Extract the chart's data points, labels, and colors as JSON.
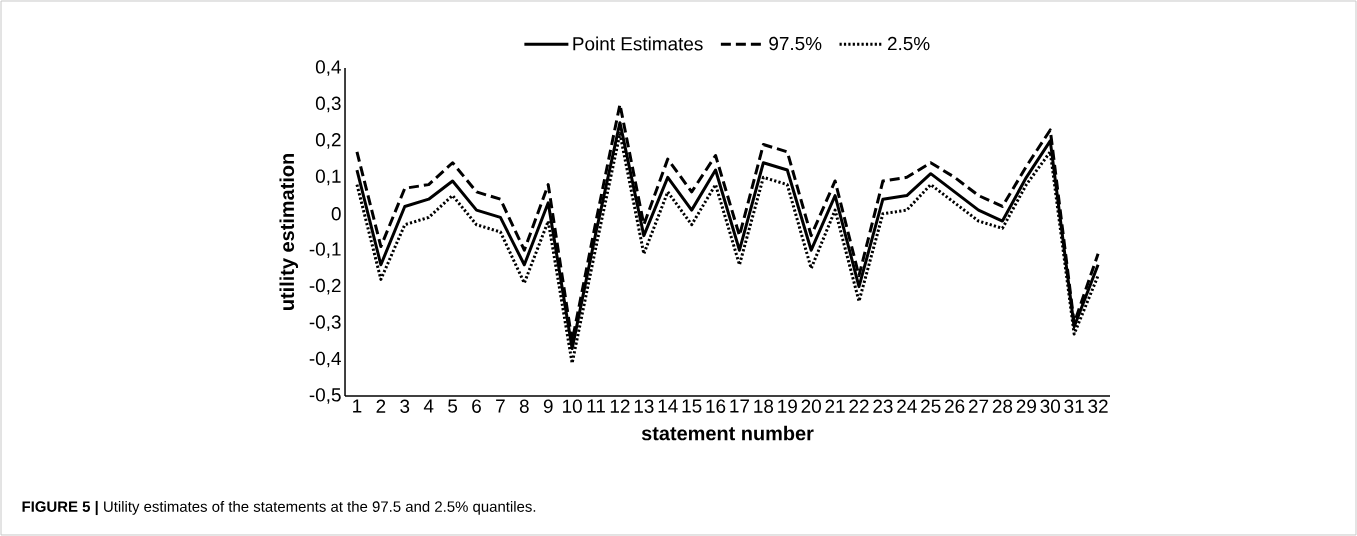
{
  "chart_data": {
    "type": "line",
    "categories": [
      "1",
      "2",
      "3",
      "4",
      "5",
      "6",
      "7",
      "8",
      "9",
      "10",
      "11",
      "12",
      "13",
      "14",
      "15",
      "16",
      "17",
      "18",
      "19",
      "20",
      "21",
      "22",
      "23",
      "24",
      "25",
      "26",
      "27",
      "28",
      "29",
      "30",
      "31",
      "32"
    ],
    "series": [
      {
        "name": "Point Estimates",
        "color": "#000000",
        "line_style": "solid",
        "values": [
          0.12,
          -0.14,
          0.02,
          0.04,
          0.09,
          0.01,
          -0.01,
          -0.14,
          0.03,
          -0.37,
          -0.05,
          0.25,
          -0.06,
          0.1,
          0.01,
          0.12,
          -0.1,
          0.14,
          0.12,
          -0.1,
          0.05,
          -0.2,
          0.04,
          0.05,
          0.11,
          0.06,
          0.01,
          -0.02,
          0.1,
          0.2,
          -0.31,
          -0.14
        ]
      },
      {
        "name": "97.5%",
        "color": "#000000",
        "line_style": "dashed",
        "values": [
          0.17,
          -0.09,
          0.07,
          0.08,
          0.14,
          0.06,
          0.04,
          -0.1,
          0.08,
          -0.35,
          -0.02,
          0.3,
          -0.03,
          0.15,
          0.06,
          0.16,
          -0.06,
          0.19,
          0.17,
          -0.06,
          0.09,
          -0.17,
          0.09,
          0.1,
          0.14,
          0.1,
          0.05,
          0.02,
          0.13,
          0.23,
          -0.3,
          -0.11
        ]
      },
      {
        "name": "2.5%",
        "color": "#000000",
        "line_style": "dotted",
        "values": [
          0.08,
          -0.18,
          -0.03,
          -0.01,
          0.05,
          -0.03,
          -0.05,
          -0.19,
          -0.02,
          -0.41,
          -0.09,
          0.22,
          -0.11,
          0.06,
          -0.03,
          0.08,
          -0.14,
          0.1,
          0.08,
          -0.15,
          0.01,
          -0.24,
          0.0,
          0.01,
          0.08,
          0.03,
          -0.02,
          -0.04,
          0.08,
          0.17,
          -0.33,
          -0.17
        ]
      }
    ],
    "ylim": [
      -0.5,
      0.4
    ],
    "yticks": [
      {
        "value": -0.5,
        "label": "-0,5"
      },
      {
        "value": -0.4,
        "label": "-0,4"
      },
      {
        "value": -0.3,
        "label": "-0,3"
      },
      {
        "value": -0.2,
        "label": "-0,2"
      },
      {
        "value": -0.1,
        "label": "-0,1"
      },
      {
        "value": 0,
        "label": "0"
      },
      {
        "value": 0.1,
        "label": "0,1"
      },
      {
        "value": 0.2,
        "label": "0,2"
      },
      {
        "value": 0.3,
        "label": "0,3"
      },
      {
        "value": 0.4,
        "label": "0,4"
      }
    ],
    "xlabel": "statement number",
    "ylabel": "utility estimation",
    "legend": "top",
    "annotations": [
      "**FIGURE 5 |** Utility estimates of the statements at the 97.5 and 2.5% quantiles."
    ]
  }
}
